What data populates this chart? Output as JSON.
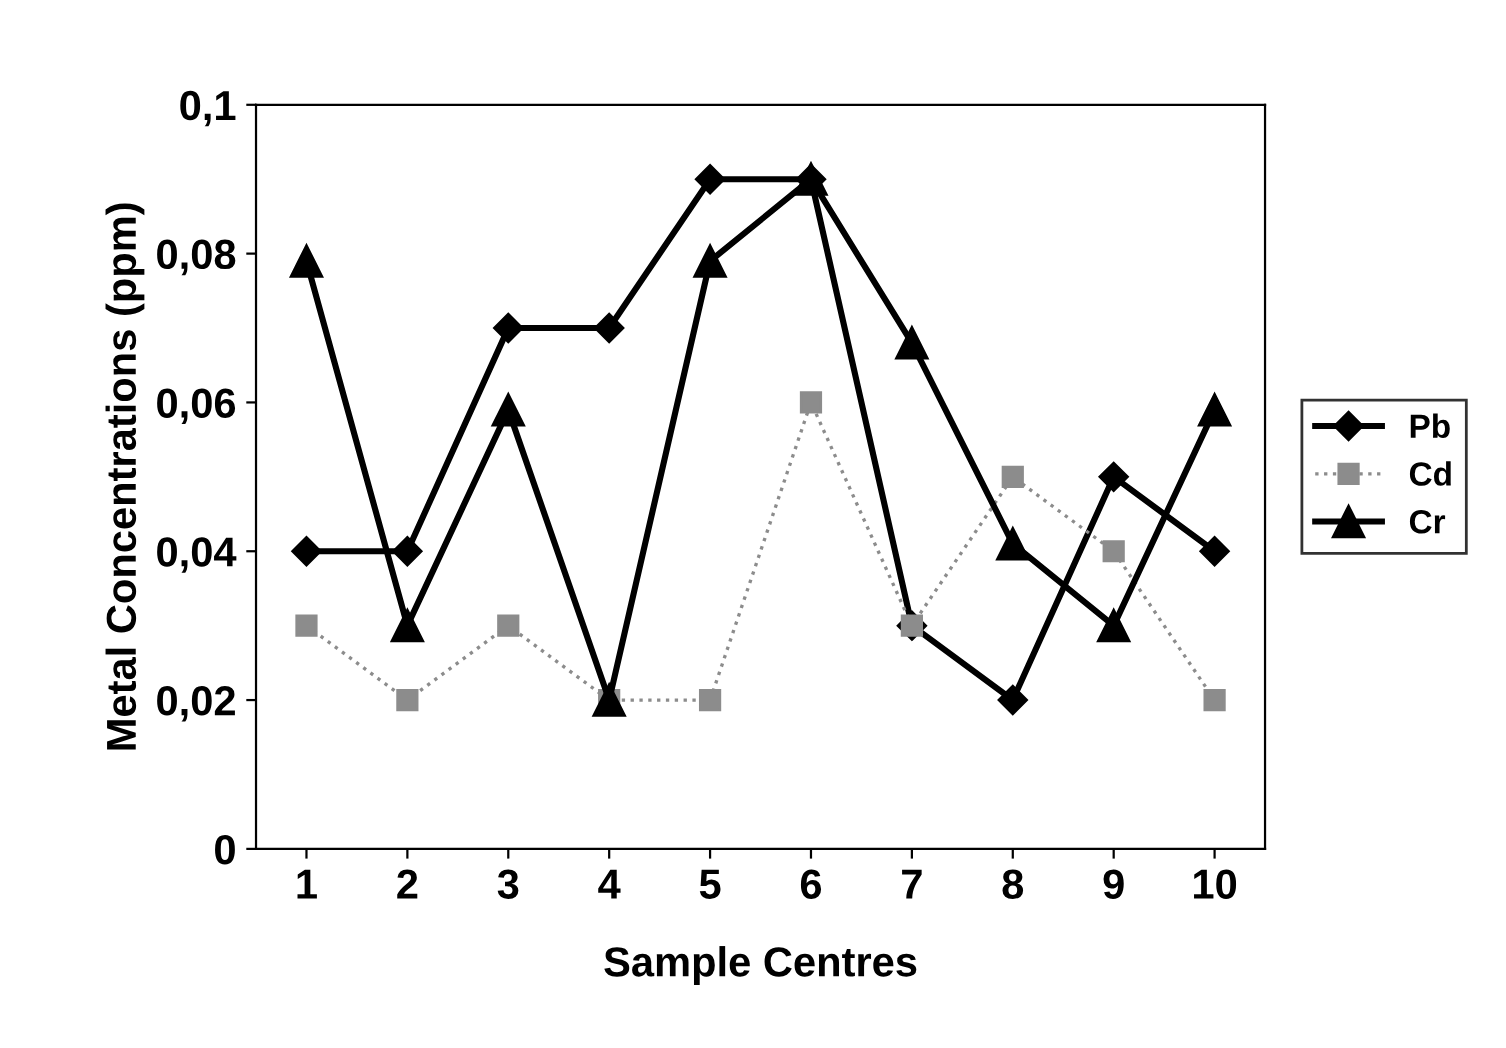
{
  "chart_data": {
    "type": "line",
    "xlabel": "Sample Centres",
    "ylabel": "Metal Concentrations (ppm)",
    "categories": [
      "1",
      "2",
      "3",
      "4",
      "5",
      "6",
      "7",
      "8",
      "9",
      "10"
    ],
    "series": [
      {
        "name": "Pb",
        "color": "#000000",
        "marker": "diamond",
        "line_style": "solid",
        "values": [
          0.04,
          0.04,
          0.07,
          0.07,
          0.09,
          0.09,
          0.03,
          0.02,
          0.05,
          0.04
        ]
      },
      {
        "name": "Cd",
        "color": "#8c8c8c",
        "marker": "square",
        "line_style": "dotted",
        "values": [
          0.03,
          0.02,
          0.03,
          0.02,
          0.02,
          0.06,
          0.03,
          0.05,
          0.04,
          0.02
        ]
      },
      {
        "name": "Cr",
        "color": "#000000",
        "marker": "triangle",
        "line_style": "solid",
        "values": [
          0.079,
          0.03,
          0.059,
          0.02,
          0.079,
          0.09,
          0.068,
          0.041,
          0.03,
          0.059
        ]
      }
    ],
    "ylim": [
      0,
      0.1
    ],
    "yticks": [
      {
        "value": 0,
        "label": "0"
      },
      {
        "value": 0.02,
        "label": "0,02"
      },
      {
        "value": 0.04,
        "label": "0,04"
      },
      {
        "value": 0.06,
        "label": "0,06"
      },
      {
        "value": 0.08,
        "label": "0,08"
      },
      {
        "value": 0.1,
        "label": "0,1"
      }
    ],
    "grid": false,
    "legend": "right"
  }
}
